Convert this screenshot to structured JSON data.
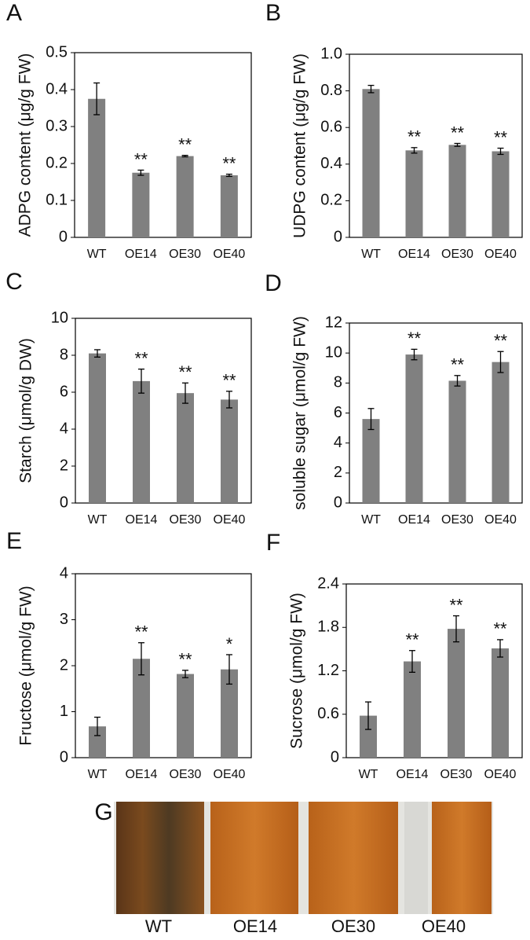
{
  "chart_data": [
    {
      "type": "bar",
      "panel": "A",
      "y_label": "ADPG content (μg/g FW)",
      "categories": [
        "WT",
        "OE14",
        "OE30",
        "OE40"
      ],
      "values": [
        0.375,
        0.175,
        0.22,
        0.168
      ],
      "errors": [
        0.043,
        0.007,
        0.002,
        0.003
      ],
      "significance": [
        null,
        "**",
        "**",
        "**"
      ],
      "color": "#808080",
      "ylim": [
        0,
        0.5
      ],
      "yticks": [
        0,
        0.1,
        0.2,
        0.3,
        0.4,
        0.5
      ]
    },
    {
      "type": "bar",
      "panel": "B",
      "y_label": "UDPG content (μg/g FW)",
      "categories": [
        "WT",
        "OE14",
        "OE30",
        "OE40"
      ],
      "values": [
        0.81,
        0.475,
        0.505,
        0.47
      ],
      "errors": [
        0.02,
        0.015,
        0.008,
        0.017
      ],
      "significance": [
        null,
        "**",
        "**",
        "**"
      ],
      "color": "#808080",
      "ylim": [
        0,
        1
      ],
      "yticks": [
        0,
        0.2,
        0.4,
        0.6,
        0.8,
        {
          "value": 1,
          "label": "1.0"
        }
      ]
    },
    {
      "type": "bar",
      "panel": "C",
      "y_label": "Starch  (μmol/g DW)",
      "categories": [
        "WT",
        "OE14",
        "OE30",
        "OE40"
      ],
      "values": [
        8.1,
        6.6,
        5.95,
        5.6
      ],
      "errors": [
        0.2,
        0.65,
        0.55,
        0.45
      ],
      "significance": [
        null,
        "**",
        "**",
        "**"
      ],
      "color": "#808080",
      "ylim": [
        0,
        10
      ],
      "yticks": [
        0,
        2,
        4,
        6,
        8,
        10
      ]
    },
    {
      "type": "bar",
      "panel": "D",
      "y_label": "soluble sugar (μmol/g FW)",
      "categories": [
        "WT",
        "OE14",
        "OE30",
        "OE40"
      ],
      "values": [
        5.6,
        9.9,
        8.15,
        9.4
      ],
      "errors": [
        0.7,
        0.35,
        0.35,
        0.7
      ],
      "significance": [
        null,
        "**",
        "**",
        "**"
      ],
      "color": "#808080",
      "ylim": [
        0,
        12
      ],
      "yticks": [
        0,
        2,
        4,
        6,
        8,
        10,
        12
      ]
    },
    {
      "type": "bar",
      "panel": "E",
      "y_label": "Fructose (μmol/g FW)",
      "categories": [
        "WT",
        "OE14",
        "OE30",
        "OE40"
      ],
      "values": [
        0.68,
        2.15,
        1.82,
        1.92
      ],
      "errors": [
        0.2,
        0.35,
        0.08,
        0.32
      ],
      "significance": [
        null,
        "**",
        "**",
        "*"
      ],
      "color": "#808080",
      "ylim": [
        0,
        4
      ],
      "yticks": [
        0,
        1,
        2,
        3,
        4
      ]
    },
    {
      "type": "bar",
      "panel": "F",
      "y_label": "Sucrose (μmol/g FW)",
      "categories": [
        "WT",
        "OE14",
        "OE30",
        "OE40"
      ],
      "values": [
        0.58,
        1.33,
        1.78,
        1.51
      ],
      "errors": [
        0.19,
        0.15,
        0.18,
        0.12
      ],
      "significance": [
        null,
        "**",
        "**",
        "**"
      ],
      "color": "#808080",
      "ylim": [
        0,
        2.4
      ],
      "yticks": [
        0,
        0.6,
        1.2,
        1.8,
        2.4
      ]
    }
  ],
  "image_panel": {
    "panel": "G",
    "labels": [
      "WT",
      "OE14",
      "OE30",
      "OE40"
    ]
  }
}
